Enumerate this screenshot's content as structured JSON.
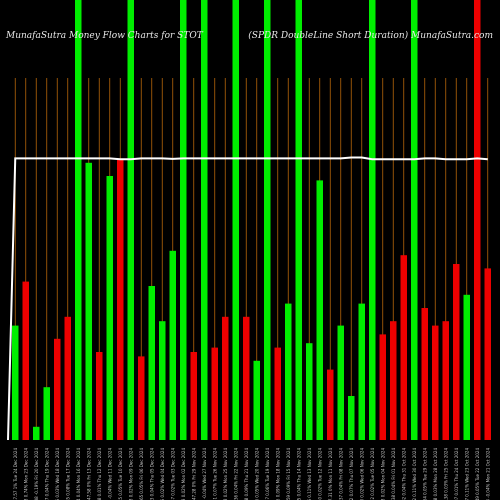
{
  "header": {
    "left_title": "MunafaSutra  Money Flow  Charts for STOT",
    "right_title": "(SPDR DoubleLine   Short Duration) MunafaSutra.com"
  },
  "chart_data": {
    "type": "bar",
    "title": "MunafaSutra  Money Flow  Charts for STOT",
    "subtitle": "(SPDR DoubleLine   Short Duration) MunafaSutra.com",
    "ylim": [
      0,
      100
    ],
    "colors": {
      "up": "#00ee00",
      "down": "#ee0000",
      "line": "#ffffff",
      "background": "#000000",
      "vline": "#b5660a"
    },
    "categories": [
      "Tue 24 Dec 2024",
      "Mon 23 Dec 2024",
      "Fri 20 Dec 2024",
      "Thu 19 Dec 2024",
      "Wed 18 Dec 2024",
      "Tue 17 Dec 2024",
      "Mon 16 Dec 2024",
      "Fri 13 Dec 2024",
      "Thu 12 Dec 2024",
      "Wed 11 Dec 2024",
      "Tue 10 Dec 2024",
      "Mon 09 Dec 2024",
      "Fri 06 Dec 2024",
      "Thu 05 Dec 2024",
      "Wed 04 Dec 2024",
      "Tue 03 Dec 2024",
      "Mon 02 Dec 2024",
      "Fri 29 Nov 2024",
      "Wed 27 Nov 2024",
      "Tue 26 Nov 2024",
      "Mon 25 Nov 2024",
      "Fri 22 Nov 2024",
      "Thu 21 Nov 2024",
      "Wed 20 Nov 2024",
      "Tue 19 Nov 2024",
      "Mon 18 Nov 2024",
      "Fri 15 Nov 2024",
      "Thu 14 Nov 2024",
      "Wed 13 Nov 2024",
      "Tue 12 Nov 2024",
      "Mon 11 Nov 2024",
      "Fri 08 Nov 2024",
      "Thu 07 Nov 2024",
      "Wed 06 Nov 2024",
      "Tue 05 Nov 2024",
      "Mon 04 Nov 2024",
      "Fri 01 Nov 2024",
      "Thu 31 Oct 2024",
      "Wed 30 Oct 2024",
      "Tue 29 Oct 2024",
      "Mon 28 Oct 2024",
      "Fri 25 Oct 2024",
      "Thu 24 Oct 2024",
      "Wed 23 Oct 2024",
      "Tue 22 Oct 2024",
      "Mon 21 Oct 2024"
    ],
    "tick_labels": [
      "47.57 1%",
      "47.38 0.74%",
      "47.38 -0.19%",
      "47.27 0.04%",
      "47.55 0.03%",
      "47.65 0.08%",
      "47.74 0.04%",
      "47.58 0%",
      "47.38 0.01%",
      "47.66 -0.04%",
      "47.45 0.05%",
      "47.28 0.02%",
      "47.65 0.05%",
      "47.63 0.04%",
      "47.55 0.02%",
      "47.47 0.02%",
      "47.43 0.02%",
      "47.28 0%",
      "47.43 -0.04%",
      "47.51 0.07%",
      "47.38 0.02%",
      "47.36 0.04%",
      "47.38 0.09%",
      "47.66 0.05%",
      "47.37 0.06%",
      "47.46 0.09%",
      "47.59 0.09%",
      "47.35 0.04%",
      "47.45 0.11%",
      "47.40 0.02%",
      "47.31 0%",
      "47.37 0.04%",
      "47.42 0.07%",
      "47.60 0.02%",
      "47.62 0.02%",
      "47.58 0.02%",
      "47.38 0.04%",
      "47.32 0.04%",
      "47.52 0.11%",
      "47.64 0.05%",
      "47.58 0.03%",
      "47.38 0.03%",
      "47.37 0.01%",
      "47.47 0.11%",
      "47.49 0.05%",
      "47.43 -0.04%"
    ],
    "series": [
      {
        "values": [
          26,
          36,
          3,
          12,
          23,
          28,
          100,
          63,
          20,
          60,
          64,
          100,
          19,
          35,
          27,
          43,
          100,
          20,
          100,
          21,
          28,
          100,
          28,
          18,
          100,
          21,
          31,
          100,
          22,
          59,
          16,
          26,
          10,
          31,
          100,
          24,
          27,
          42,
          100,
          30,
          26,
          27,
          40,
          33,
          100,
          39
        ],
        "direction": [
          "up",
          "down",
          "up",
          "up",
          "down",
          "down",
          "up",
          "up",
          "down",
          "up",
          "down",
          "up",
          "down",
          "up",
          "up",
          "up",
          "up",
          "down",
          "up",
          "down",
          "down",
          "up",
          "down",
          "up",
          "up",
          "down",
          "up",
          "up",
          "up",
          "up",
          "down",
          "up",
          "up",
          "up",
          "up",
          "down",
          "down",
          "down",
          "up",
          "down",
          "down",
          "down",
          "down",
          "up",
          "down",
          "down"
        ]
      }
    ],
    "line": {
      "values": [
        64,
        64,
        64,
        64,
        64,
        64,
        64,
        64,
        64,
        64,
        63.8,
        63.8,
        64,
        64,
        64,
        63.9,
        64,
        64,
        64,
        64,
        64,
        64,
        64,
        64,
        64,
        64,
        64,
        64,
        64,
        64,
        64,
        64,
        64.2,
        64.2,
        63.8,
        63.8,
        63.8,
        63.8,
        63.8,
        64,
        64,
        63.8,
        63.8,
        63.8,
        64,
        63.8
      ],
      "start_value": 0
    },
    "grid": false
  }
}
